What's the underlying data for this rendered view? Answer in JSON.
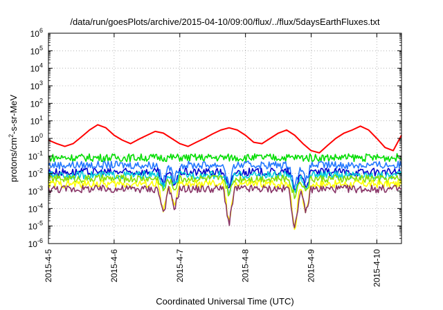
{
  "chart_data": {
    "type": "line",
    "title": "/data/run/goesPlots/archive/2015-04-10/09:00/flux/../flux/5daysEarthFluxes.txt",
    "xlabel": "Coordinated Universal Time (UTC)",
    "ylabel_prefix": "protons/cm",
    "ylabel_sup": "2",
    "ylabel_suffix": "-s-sr-MeV",
    "y_scale": "log",
    "ylim": [
      1e-06,
      1000000.0
    ],
    "y_ticks": [
      {
        "base": "10",
        "exp": "6"
      },
      {
        "base": "10",
        "exp": "5"
      },
      {
        "base": "10",
        "exp": "4"
      },
      {
        "base": "10",
        "exp": "3"
      },
      {
        "base": "10",
        "exp": "2"
      },
      {
        "base": "10",
        "exp": "1"
      },
      {
        "base": "10",
        "exp": "0"
      },
      {
        "base": "10",
        "exp": "-1"
      },
      {
        "base": "10",
        "exp": "-2"
      },
      {
        "base": "10",
        "exp": "-3"
      },
      {
        "base": "10",
        "exp": "-4"
      },
      {
        "base": "10",
        "exp": "-5"
      },
      {
        "base": "10",
        "exp": "-6"
      }
    ],
    "x_ticks": [
      "2015-4-5",
      "2015-4-6",
      "2015-4-7",
      "2015-4-8",
      "2015-4-9",
      "2015-4-10"
    ],
    "xlim": [
      "2015-04-05T00:00",
      "2015-04-10T09:00"
    ],
    "grid": true,
    "legend": "none",
    "series": [
      {
        "color": "#ff0000",
        "x": [
          "2015-04-05T00:00",
          "2015-04-05T03:00",
          "2015-04-05T06:00",
          "2015-04-05T09:00",
          "2015-04-05T12:00",
          "2015-04-05T15:00",
          "2015-04-05T18:00",
          "2015-04-05T21:00",
          "2015-04-06T00:00",
          "2015-04-06T03:00",
          "2015-04-06T06:00",
          "2015-04-06T09:00",
          "2015-04-06T12:00",
          "2015-04-06T15:00",
          "2015-04-06T18:00",
          "2015-04-06T21:00",
          "2015-04-07T00:00",
          "2015-04-07T03:00",
          "2015-04-07T06:00",
          "2015-04-07T09:00",
          "2015-04-07T12:00",
          "2015-04-07T15:00",
          "2015-04-07T18:00",
          "2015-04-07T21:00",
          "2015-04-08T00:00",
          "2015-04-08T03:00",
          "2015-04-08T06:00",
          "2015-04-08T09:00",
          "2015-04-08T12:00",
          "2015-04-08T15:00",
          "2015-04-08T18:00",
          "2015-04-08T21:00",
          "2015-04-09T00:00",
          "2015-04-09T03:00",
          "2015-04-09T06:00",
          "2015-04-09T09:00",
          "2015-04-09T12:00",
          "2015-04-09T15:00",
          "2015-04-09T18:00",
          "2015-04-09T21:00",
          "2015-04-10T00:00",
          "2015-04-10T03:00",
          "2015-04-10T06:00",
          "2015-04-10T09:00"
        ],
        "values": [
          0.8,
          0.5,
          0.35,
          0.5,
          1.2,
          3,
          6,
          4,
          1.5,
          0.8,
          0.5,
          0.9,
          1.5,
          2.5,
          2,
          1,
          0.5,
          0.35,
          0.6,
          1,
          1.8,
          3,
          4,
          3,
          1.5,
          0.6,
          0.5,
          1,
          2,
          3,
          1.5,
          0.5,
          0.2,
          0.15,
          0.4,
          1,
          2,
          3,
          5,
          3,
          1,
          0.3,
          0.2,
          1.5
        ]
      },
      {
        "color": "#00dd00",
        "x": [
          "2015-04-05T00:00",
          "2015-04-10T09:00"
        ],
        "values": [
          0.08,
          0.08
        ]
      },
      {
        "color": "#2277ff",
        "x": [
          "2015-04-05T00:00",
          "2015-04-10T09:00"
        ],
        "values": [
          0.03,
          0.03
        ]
      },
      {
        "color": "#0000cc",
        "x": [
          "2015-04-05T00:00",
          "2015-04-10T09:00"
        ],
        "values": [
          0.012,
          0.012
        ]
      },
      {
        "color": "#00ccdd",
        "x": [
          "2015-04-05T00:00",
          "2015-04-10T09:00"
        ],
        "values": [
          0.008,
          0.008
        ]
      },
      {
        "color": "#88dd00",
        "x": [
          "2015-04-05T00:00",
          "2015-04-10T09:00"
        ],
        "values": [
          0.005,
          0.005
        ]
      },
      {
        "color": "#ffff00",
        "x": [
          "2015-04-05T00:00",
          "2015-04-10T09:00"
        ],
        "values": [
          0.0025,
          0.0025
        ]
      },
      {
        "color": "#883366",
        "x": [
          "2015-04-05T00:00",
          "2015-04-10T09:00"
        ],
        "values": [
          0.0013,
          0.0013
        ]
      }
    ],
    "dips": [
      {
        "x": "2015-04-06T18:00",
        "min": 5e-05
      },
      {
        "x": "2015-04-06T22:00",
        "min": 0.0001
      },
      {
        "x": "2015-04-07T18:00",
        "min": 1e-05
      },
      {
        "x": "2015-04-08T18:00",
        "min": 5e-06
      },
      {
        "x": "2015-04-08T22:00",
        "min": 5e-05
      }
    ]
  }
}
